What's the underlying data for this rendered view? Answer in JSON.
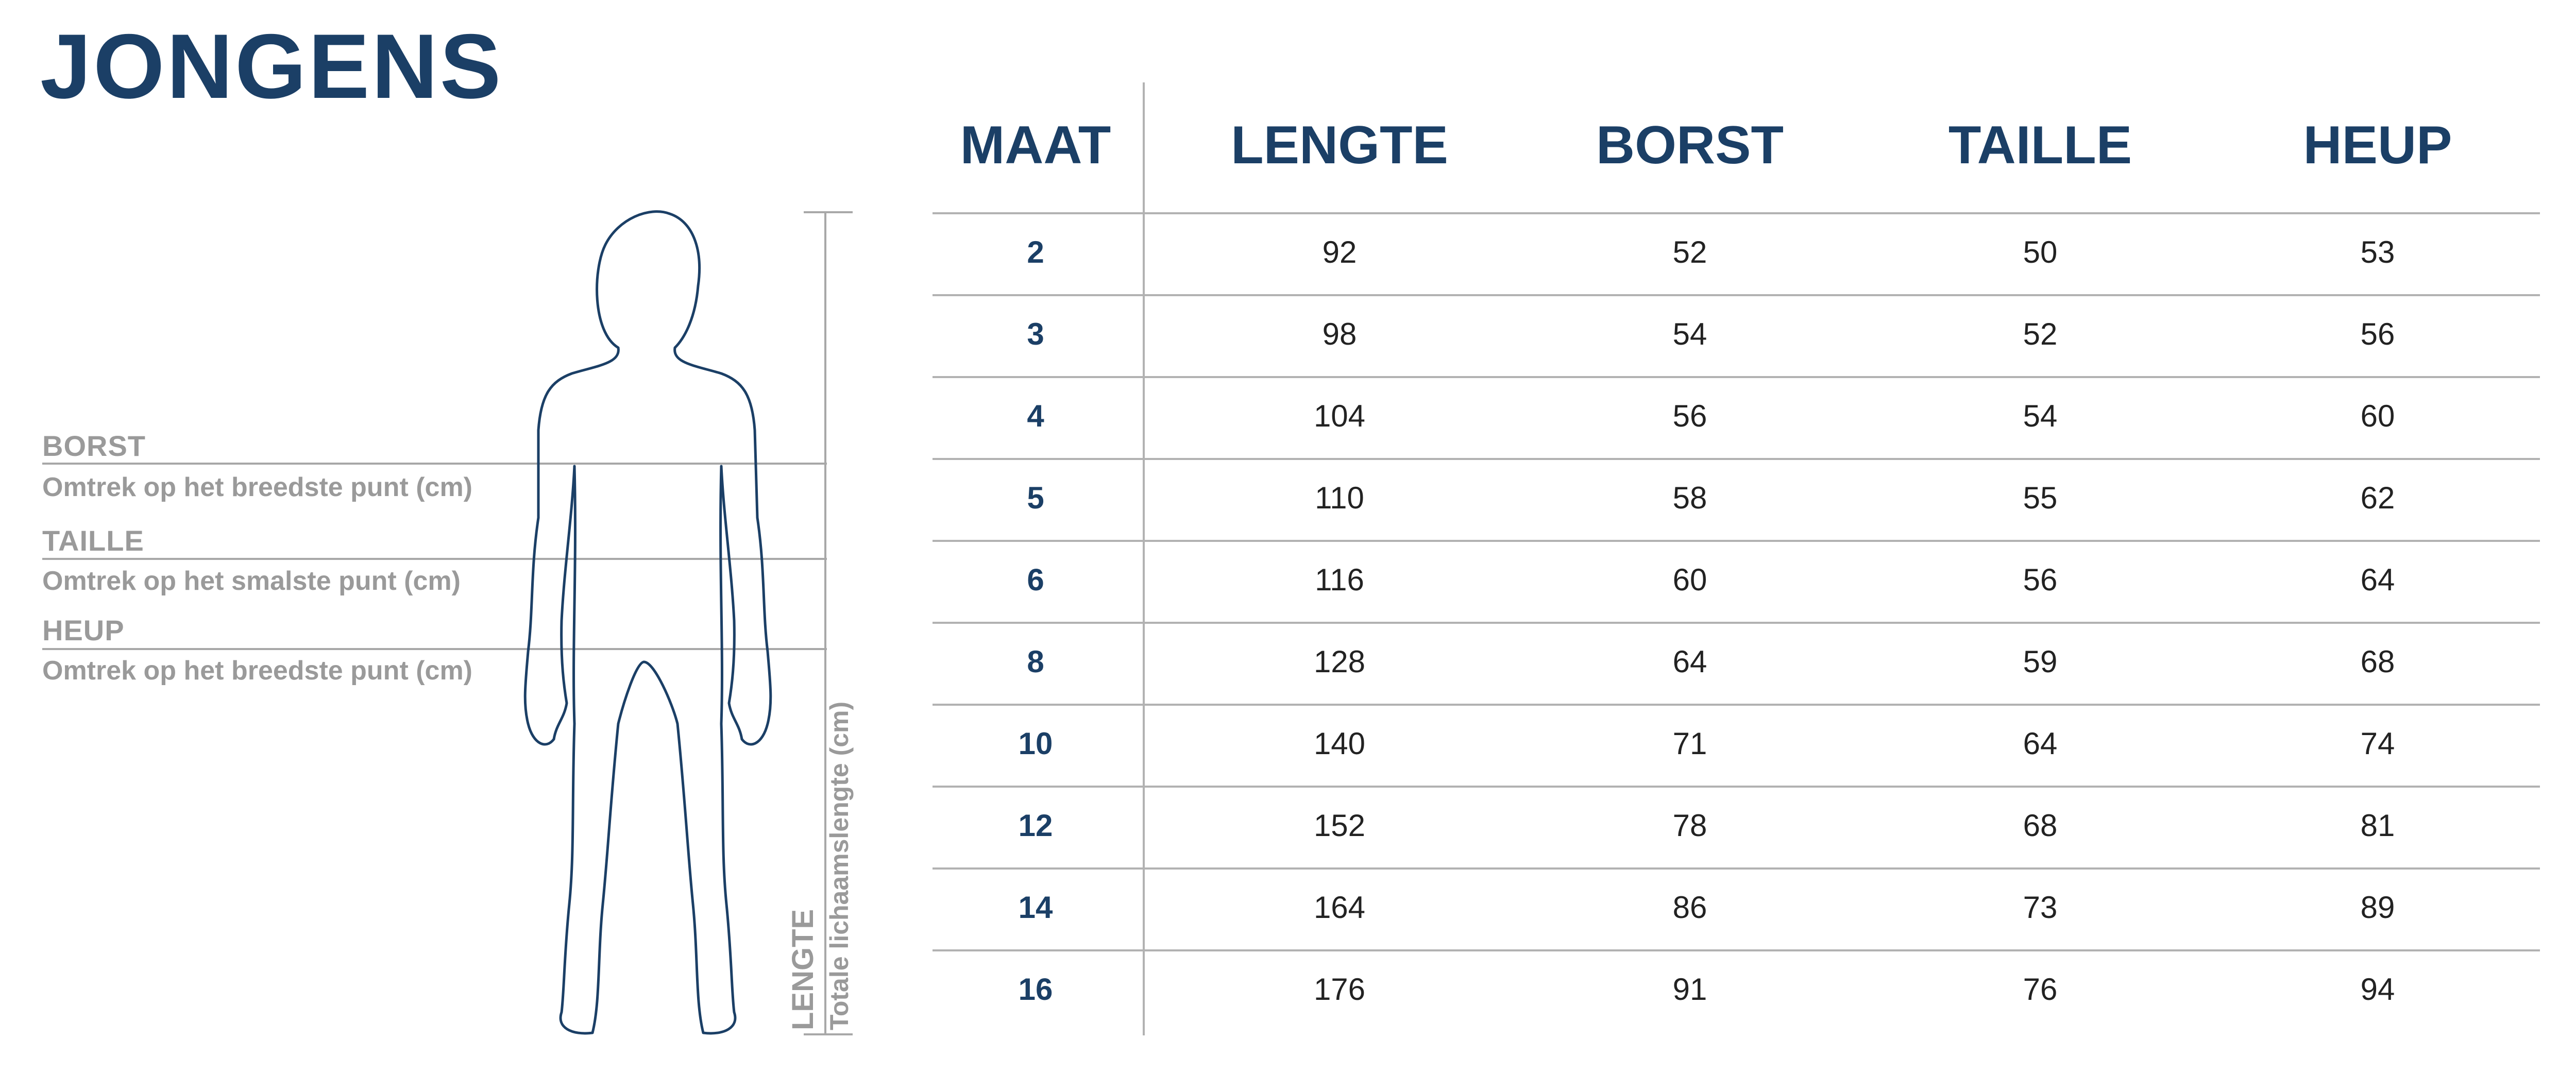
{
  "title": "JONGENS",
  "measurements": {
    "borst": {
      "label": "BORST",
      "description": "Omtrek op het breedste punt (cm)"
    },
    "taille": {
      "label": "TAILLE",
      "description": "Omtrek op het smalste punt (cm)"
    },
    "heup": {
      "label": "HEUP",
      "description": "Omtrek op het breedste punt (cm)"
    },
    "lengte": {
      "label": "LENGTE",
      "description": "Totale lichaamslengte (cm)"
    }
  },
  "table": {
    "headers": [
      "MAAT",
      "LENGTE",
      "BORST",
      "TAILLE",
      "HEUP"
    ],
    "rows": [
      [
        "2",
        "92",
        "52",
        "50",
        "53"
      ],
      [
        "3",
        "98",
        "54",
        "52",
        "56"
      ],
      [
        "4",
        "104",
        "56",
        "54",
        "60"
      ],
      [
        "5",
        "110",
        "58",
        "55",
        "62"
      ],
      [
        "6",
        "116",
        "60",
        "56",
        "64"
      ],
      [
        "8",
        "128",
        "64",
        "59",
        "68"
      ],
      [
        "10",
        "140",
        "71",
        "64",
        "74"
      ],
      [
        "12",
        "152",
        "78",
        "68",
        "81"
      ],
      [
        "14",
        "164",
        "86",
        "73",
        "89"
      ],
      [
        "16",
        "176",
        "91",
        "76",
        "94"
      ]
    ]
  },
  "colors": {
    "heading": "#1b3f66",
    "label": "#9a9a9a",
    "line": "#b2b2b2"
  }
}
